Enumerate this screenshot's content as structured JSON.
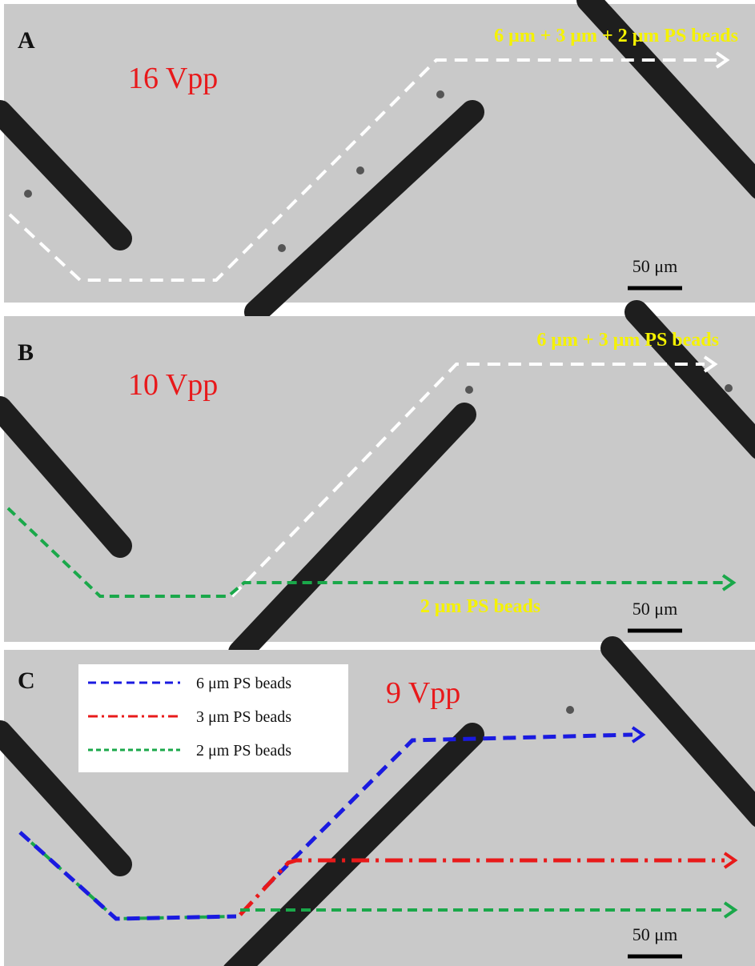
{
  "panels": [
    {
      "label": "A",
      "voltage": "16 Vpp",
      "path_labels": [
        "6 μm + 3 μm + 2 μm PS beads"
      ],
      "scale_bar": "50 μm"
    },
    {
      "label": "B",
      "voltage": "10 Vpp",
      "path_labels": [
        "6 μm + 3 μm PS beads",
        "2 μm PS beads"
      ],
      "scale_bar": "50 μm"
    },
    {
      "label": "C",
      "voltage": "9 Vpp",
      "legend": [
        "6 μm PS beads",
        "3 μm PS beads",
        "2 μm PS beads"
      ],
      "scale_bar": "50 μm"
    }
  ]
}
